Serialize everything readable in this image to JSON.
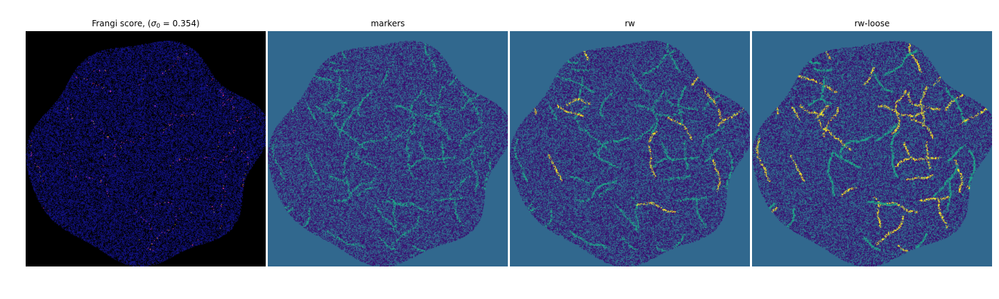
{
  "figure": {
    "panels": [
      {
        "id": "frangi",
        "title_prefix": "Frangi score, (",
        "title_sigma": "σ",
        "title_sub": "0",
        "title_suffix": " = 0.354)",
        "background_color": "#000000",
        "base_color": "#11117a",
        "highlight_colors": [
          "#ff3fb0",
          "#ffd200"
        ]
      },
      {
        "id": "markers",
        "title": "markers",
        "background_color": "#31688e",
        "base_color": "#3b0f70",
        "highlight_colors": [
          "#1fa187"
        ]
      },
      {
        "id": "rw",
        "title": "rw",
        "background_color": "#31688e",
        "base_color": "#3b0f70",
        "highlight_colors": [
          "#1fa187",
          "#fde725"
        ]
      },
      {
        "id": "rw-loose",
        "title": "rw-loose",
        "background_color": "#31688e",
        "base_color": "#3b0f70",
        "highlight_colors": [
          "#1fa187",
          "#fde725"
        ]
      }
    ]
  }
}
